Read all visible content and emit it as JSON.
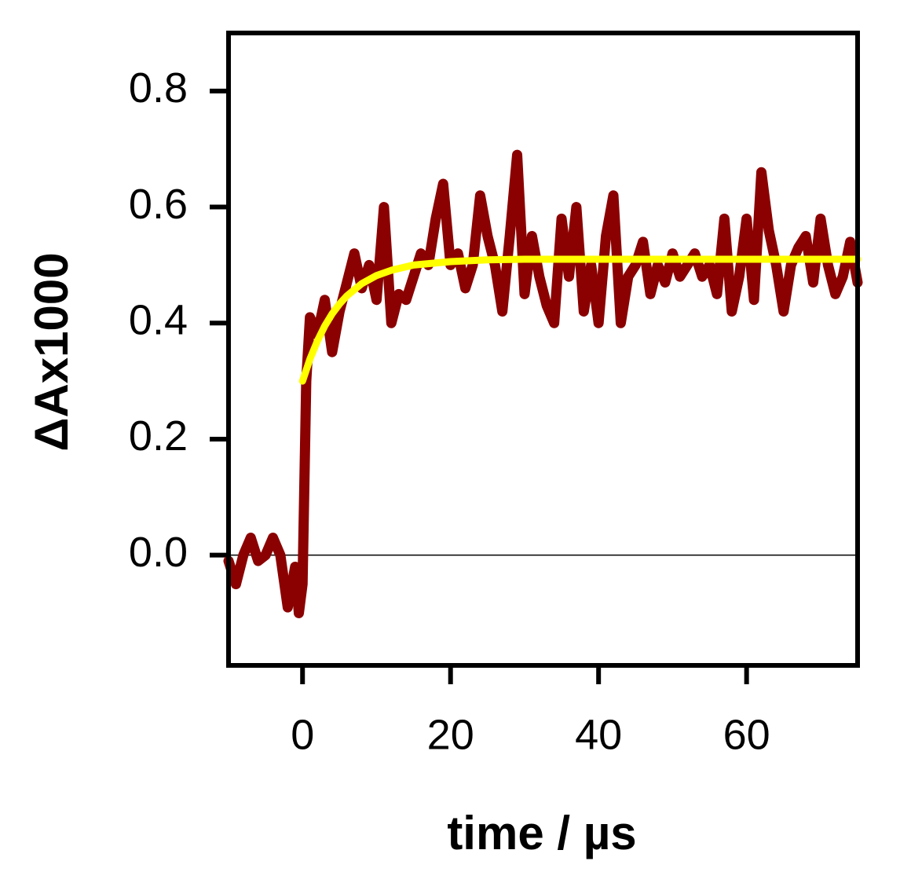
{
  "chart_data": {
    "type": "line",
    "xlabel": "time / µs",
    "ylabel": "ΔAx1000",
    "xlim": [
      -10,
      75
    ],
    "ylim": [
      -0.19,
      0.9
    ],
    "xticks": [
      0,
      20,
      40,
      60
    ],
    "yticks": [
      {
        "value": 0,
        "label": "0.0"
      },
      0.2,
      0.4,
      0.6,
      0.8
    ],
    "zero_line": 0,
    "series": [
      {
        "color": "#8b0000",
        "x": [
          -10,
          -9,
          -8,
          -7,
          -6,
          -5,
          -4,
          -3,
          -2,
          -1,
          -0.5,
          0,
          0.5,
          1,
          2,
          3,
          4,
          5,
          6,
          7,
          8,
          9,
          10,
          11,
          12,
          13,
          14,
          15,
          16,
          17,
          18,
          19,
          20,
          21,
          22,
          23,
          24,
          25,
          26,
          27,
          28,
          29,
          30,
          31,
          32,
          33,
          34,
          35,
          36,
          37,
          38,
          39,
          40,
          41,
          42,
          43,
          44,
          45,
          46,
          47,
          48,
          49,
          50,
          51,
          52,
          53,
          54,
          55,
          56,
          57,
          58,
          59,
          60,
          61,
          62,
          63,
          64,
          65,
          66,
          67,
          68,
          69,
          70,
          71,
          72,
          73,
          74,
          75
        ],
        "values": [
          -0.01,
          -0.05,
          0.0,
          0.03,
          -0.01,
          0.0,
          0.03,
          0.0,
          -0.09,
          -0.02,
          -0.1,
          -0.05,
          0.3,
          0.41,
          0.38,
          0.44,
          0.35,
          0.42,
          0.47,
          0.52,
          0.46,
          0.5,
          0.44,
          0.6,
          0.4,
          0.45,
          0.44,
          0.48,
          0.52,
          0.5,
          0.58,
          0.64,
          0.5,
          0.52,
          0.46,
          0.5,
          0.62,
          0.55,
          0.5,
          0.42,
          0.55,
          0.69,
          0.45,
          0.55,
          0.48,
          0.43,
          0.4,
          0.58,
          0.48,
          0.6,
          0.42,
          0.5,
          0.4,
          0.55,
          0.62,
          0.4,
          0.48,
          0.5,
          0.54,
          0.45,
          0.5,
          0.47,
          0.52,
          0.48,
          0.5,
          0.52,
          0.48,
          0.5,
          0.45,
          0.58,
          0.42,
          0.48,
          0.58,
          0.44,
          0.66,
          0.56,
          0.5,
          0.42,
          0.5,
          0.53,
          0.55,
          0.47,
          0.58,
          0.5,
          0.45,
          0.48,
          0.54,
          0.47
        ]
      },
      {
        "color": "#ffff00",
        "x": [
          0,
          1,
          2,
          3,
          4,
          5,
          6,
          8,
          10,
          12,
          15,
          20,
          25,
          30,
          40,
          50,
          60,
          75
        ],
        "values": [
          0.3,
          0.338,
          0.369,
          0.395,
          0.416,
          0.433,
          0.447,
          0.468,
          0.482,
          0.491,
          0.5,
          0.506,
          0.509,
          0.51,
          0.51,
          0.51,
          0.51,
          0.51
        ]
      }
    ]
  }
}
